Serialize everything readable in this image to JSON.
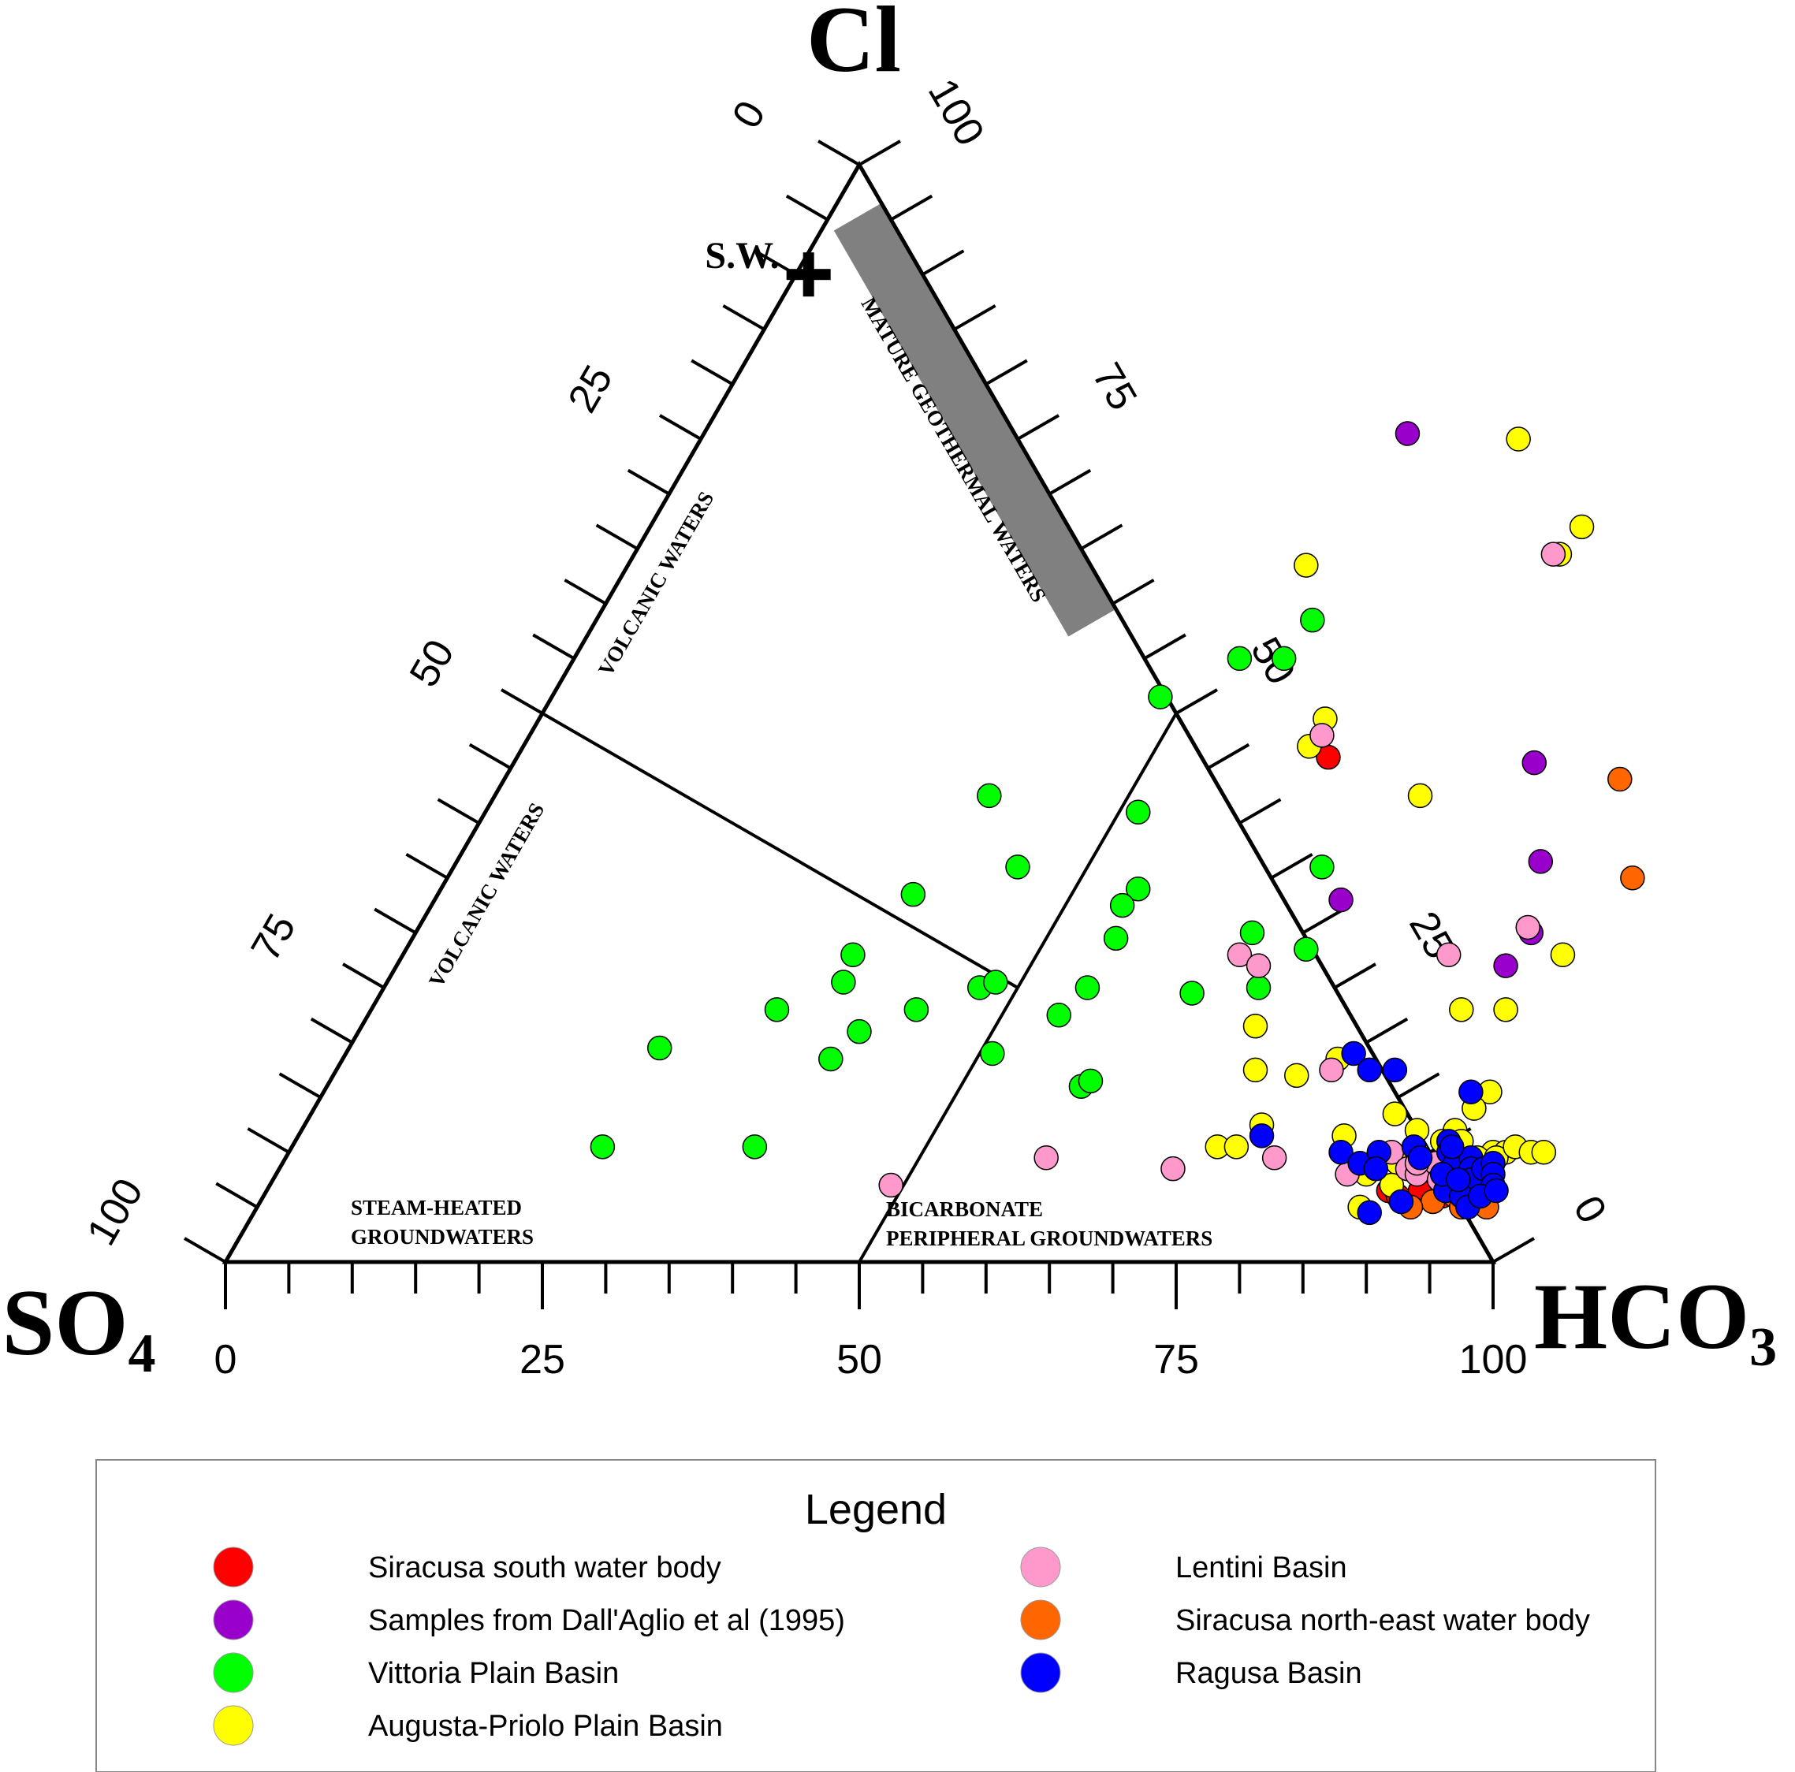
{
  "colors": {
    "siracusa_south": "#ff0000",
    "dallaglio": "#9900cc",
    "vittoria": "#00ff00",
    "augusta": "#ffff00",
    "lentini": "#ff99cc",
    "siracusa_ne": "#ff6600",
    "ragusa": "#0000ff",
    "geothermal_band": "#808080"
  },
  "chart_data": {
    "type": "scatter",
    "subtype": "ternary",
    "apices": {
      "top": "Cl",
      "left": "SO4",
      "right": "HCO3"
    },
    "axis_ticks": {
      "bottom_hco3": [
        "0",
        "25",
        "50",
        "75",
        "100"
      ],
      "left_cl": [
        "100",
        "75",
        "50",
        "25",
        "0"
      ],
      "right_so4": [
        "0",
        "25",
        "50",
        "75",
        "100"
      ]
    },
    "range": [
      0,
      100
    ],
    "zones": [
      {
        "name": "volcanic_upper",
        "label": "VOLCANIC WATERS"
      },
      {
        "name": "volcanic_left",
        "label": "VOLCANIC WATERS"
      },
      {
        "name": "mature",
        "label": "MATURE GEOTHERMAL WATERS"
      },
      {
        "name": "steam",
        "label_lines": [
          "STEAM-HEATED",
          "GROUNDWATERS"
        ]
      },
      {
        "name": "bicarb",
        "label_lines": [
          "BICARBONATE",
          "PERIPHERAL GROUNDWATERS"
        ]
      }
    ],
    "reference_point": {
      "label": "S.W.",
      "Cl": 90,
      "SO4": 9,
      "HCO3": 1
    },
    "series": [
      {
        "name": "Siracusa south water body",
        "color_key": "siracusa_south",
        "points": [
          [
            64,
            46
          ],
          [
            88.5,
            6.5
          ],
          [
            89.5,
            6
          ],
          [
            91,
            6.5
          ],
          [
            92.5,
            7
          ],
          [
            93.5,
            7.5
          ],
          [
            94,
            7
          ],
          [
            94.5,
            7
          ],
          [
            93,
            6
          ],
          [
            90,
            5.5
          ]
        ]
      },
      {
        "name": "Samples from Dall'Aglio et al (1995)",
        "color_key": "dallaglio",
        "points": [
          [
            55.5,
            75.5
          ],
          [
            80.5,
            45.5
          ],
          [
            85.5,
            36.5
          ],
          [
            71.5,
            33
          ],
          [
            88,
            30
          ],
          [
            87.5,
            27
          ]
        ]
      },
      {
        "name": "Vittoria Plain Basin",
        "color_key": "vittoria",
        "points": [
          [
            56.5,
            58.5
          ],
          [
            52.5,
            55
          ],
          [
            56,
            55
          ],
          [
            48,
            51.5
          ],
          [
            39,
            42.5
          ],
          [
            51.5,
            41
          ],
          [
            44.5,
            36
          ],
          [
            55,
            34
          ],
          [
            37.5,
            33.5
          ],
          [
            54.5,
            32.5
          ],
          [
            55.5,
            29.5
          ],
          [
            35.5,
            28
          ],
          [
            68.5,
            36
          ],
          [
            66,
            30
          ],
          [
            71,
            28.5
          ],
          [
            69,
            25
          ],
          [
            36,
            25.5
          ],
          [
            55.5,
            25
          ],
          [
            47,
            25
          ],
          [
            48,
            25.5
          ],
          [
            43,
            23
          ],
          [
            32,
            23
          ],
          [
            54.5,
            22.5
          ],
          [
            39.5,
            21
          ],
          [
            24.5,
            19.5
          ],
          [
            51,
            19
          ],
          [
            38.5,
            18.5
          ],
          [
            59.5,
            16
          ],
          [
            24.5,
            10.5
          ],
          [
            36.5,
            10.5
          ],
          [
            60,
            16.5
          ],
          [
            64,
            24.5
          ]
        ]
      },
      {
        "name": "Augusta-Priolo Plain Basin",
        "color_key": "augusta",
        "points": [
          [
            64.5,
            75
          ],
          [
            73.5,
            67
          ],
          [
            73,
            64.5
          ],
          [
            53.5,
            63.5
          ],
          [
            62,
            49.5
          ],
          [
            62,
            47
          ],
          [
            73,
            42.5
          ],
          [
            91.5,
            28
          ],
          [
            86,
            23
          ],
          [
            89.5,
            23
          ],
          [
            70.5,
            21.5
          ],
          [
            78.5,
            18.5
          ],
          [
            72.5,
            17.5
          ],
          [
            76,
            17
          ],
          [
            92,
            15.5
          ],
          [
            91.5,
            14
          ],
          [
            85.5,
            13.5
          ],
          [
            88,
            12
          ],
          [
            91,
            12
          ],
          [
            90.5,
            11
          ],
          [
            92,
            11
          ],
          [
            95,
            10
          ],
          [
            96,
            10
          ],
          [
            82.5,
            11.5
          ],
          [
            73,
            10.5
          ],
          [
            74.5,
            10.5
          ],
          [
            75.5,
            12.5
          ],
          [
            86,
            8
          ],
          [
            88,
            9
          ],
          [
            89,
            10
          ],
          [
            90.5,
            8.5
          ],
          [
            94,
            9.5
          ],
          [
            95.5,
            9.5
          ],
          [
            96.5,
            10.5
          ],
          [
            98,
            10
          ],
          [
            99,
            10
          ],
          [
            87,
            5
          ],
          [
            88.5,
            7
          ]
        ]
      },
      {
        "name": "Lentini Basin",
        "color_key": "lentini",
        "points": [
          [
            72.5,
            64.5
          ],
          [
            62.5,
            48
          ],
          [
            87.5,
            30.5
          ],
          [
            66,
            28
          ],
          [
            68,
            27
          ],
          [
            82.5,
            28
          ],
          [
            78.5,
            17.5
          ],
          [
            60,
            9.5
          ],
          [
            70.5,
            8.5
          ],
          [
            78,
            9.5
          ],
          [
            87,
            10
          ],
          [
            89,
            8.5
          ],
          [
            90,
            8
          ],
          [
            91,
            9
          ],
          [
            89.5,
            9
          ],
          [
            84.5,
            8
          ],
          [
            49,
            7
          ],
          [
            92,
            7.5
          ],
          [
            93,
            8
          ],
          [
            94,
            8
          ]
        ]
      },
      {
        "name": "Siracusa north-east water body",
        "color_key": "siracusa_ne",
        "points": [
          [
            88,
            44
          ],
          [
            93.5,
            35
          ],
          [
            94,
            6
          ],
          [
            95,
            5
          ],
          [
            96,
            5.5
          ],
          [
            97,
            5
          ],
          [
            92.5,
            5.5
          ],
          [
            91,
            5
          ]
        ]
      },
      {
        "name": "Ragusa Basin",
        "color_key": "ragusa",
        "points": [
          [
            79.5,
            19
          ],
          [
            81.5,
            17.5
          ],
          [
            83.5,
            17.5
          ],
          [
            90.5,
            15.5
          ],
          [
            76,
            11.5
          ],
          [
            83,
            10
          ],
          [
            85,
            9
          ],
          [
            86,
            10
          ],
          [
            86.5,
            8.5
          ],
          [
            88.5,
            10.5
          ],
          [
            89.5,
            9.5
          ],
          [
            91,
            11
          ],
          [
            91.5,
            10
          ],
          [
            92.5,
            9
          ],
          [
            93.5,
            9.5
          ],
          [
            94,
            8.5
          ],
          [
            94.5,
            7.5
          ],
          [
            95,
            8.5
          ],
          [
            95.5,
            9
          ],
          [
            96,
            8
          ],
          [
            96.5,
            7
          ],
          [
            93,
            6.5
          ],
          [
            94.5,
            6
          ],
          [
            95.5,
            5
          ],
          [
            96,
            6
          ],
          [
            97,
            6.5
          ],
          [
            90,
            5.5
          ],
          [
            88,
            4.5
          ],
          [
            91.5,
            10.5
          ],
          [
            92,
            8
          ],
          [
            93.5,
            7.5
          ]
        ]
      }
    ]
  },
  "legend": {
    "title": "Legend",
    "items": [
      {
        "label": "Siracusa south water body",
        "color_key": "siracusa_south"
      },
      {
        "label": "Samples from Dall'Aglio et al (1995)",
        "color_key": "dallaglio"
      },
      {
        "label": "Vittoria Plain Basin",
        "color_key": "vittoria"
      },
      {
        "label": "Augusta-Priolo Plain Basin",
        "color_key": "augusta"
      },
      {
        "label": "Lentini Basin",
        "color_key": "lentini"
      },
      {
        "label": "Siracusa north-east water body",
        "color_key": "siracusa_ne"
      },
      {
        "label": "Ragusa Basin",
        "color_key": "ragusa"
      }
    ]
  }
}
